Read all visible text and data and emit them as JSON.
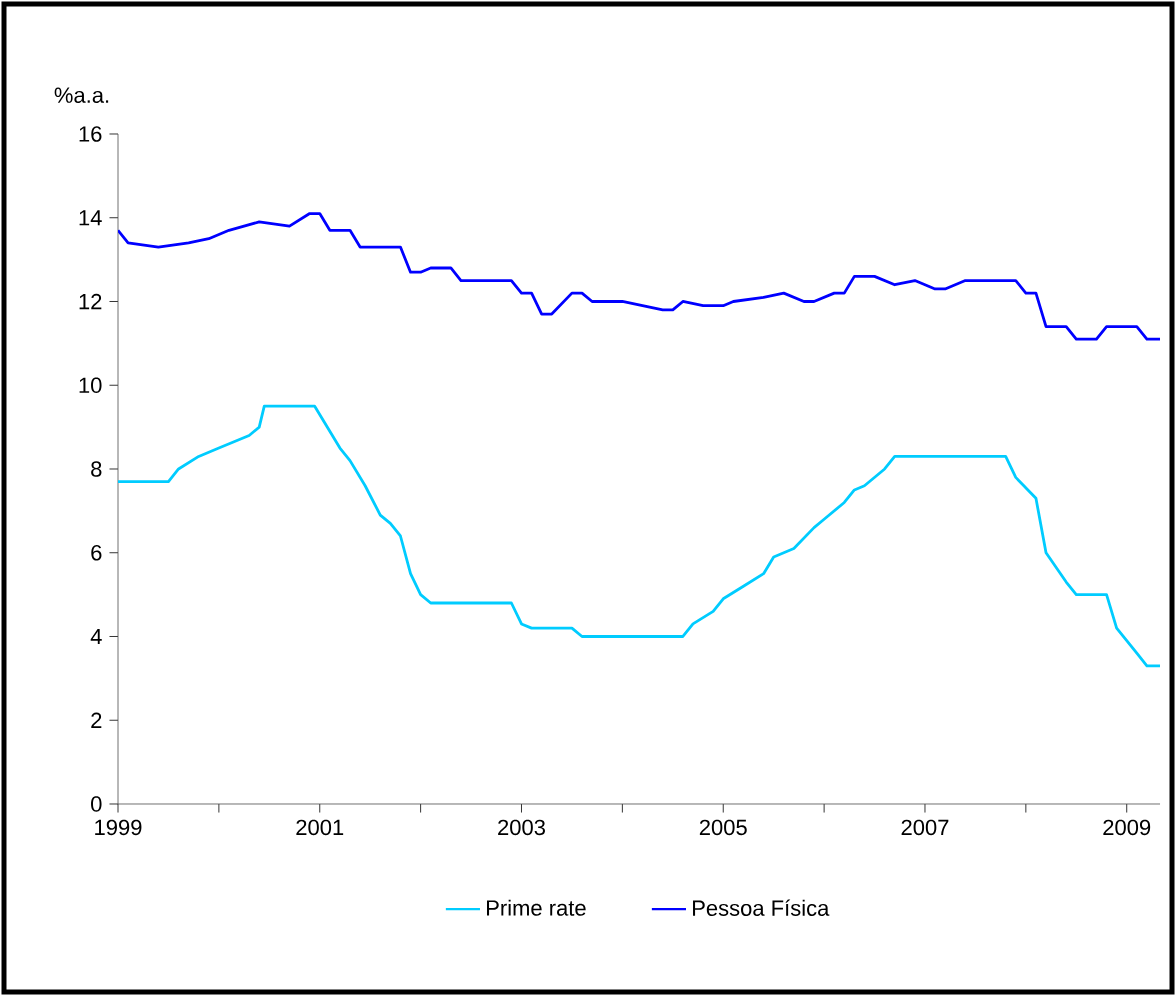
{
  "chart_data": {
    "type": "line",
    "ylabel": "%a.a.",
    "xlim": [
      1999,
      2009.33
    ],
    "ylim": [
      0,
      16
    ],
    "xticks": [
      1999,
      {
        "value": 2000,
        "label": null
      },
      2001,
      {
        "value": 2002,
        "label": null
      },
      2003,
      {
        "value": 2004,
        "label": null
      },
      2005,
      {
        "value": 2006,
        "label": null
      },
      2007,
      {
        "value": 2008,
        "label": null
      },
      2009
    ],
    "yticks": [
      0,
      2,
      4,
      6,
      8,
      10,
      12,
      14,
      16
    ],
    "grid": false,
    "legend": "bottom",
    "marker": "none",
    "line_style": "solid",
    "series": [
      {
        "name": "Prime rate",
        "color": "#00ccff",
        "x": [
          1999.0,
          1999.5,
          1999.6,
          1999.8,
          2000.0,
          2000.3,
          2000.4,
          2000.45,
          2000.95,
          2001.2,
          2001.3,
          2001.45,
          2001.6,
          2001.7,
          2001.8,
          2001.9,
          2002.0,
          2002.1,
          2002.9,
          2003.0,
          2003.1,
          2003.5,
          2003.6,
          2004.6,
          2004.7,
          2004.9,
          2005.0,
          2005.2,
          2005.4,
          2005.5,
          2005.7,
          2005.9,
          2006.0,
          2006.2,
          2006.3,
          2006.4,
          2006.6,
          2006.7,
          2007.8,
          2007.9,
          2008.1,
          2008.2,
          2008.4,
          2008.5,
          2008.8,
          2008.9,
          2009.1,
          2009.2,
          2009.33
        ],
        "values": [
          7.7,
          7.7,
          8.0,
          8.3,
          8.5,
          8.8,
          9.0,
          9.5,
          9.5,
          8.5,
          8.2,
          7.6,
          6.9,
          6.7,
          6.4,
          5.5,
          5.0,
          4.8,
          4.8,
          4.3,
          4.2,
          4.2,
          4.0,
          4.0,
          4.3,
          4.6,
          4.9,
          5.2,
          5.5,
          5.9,
          6.1,
          6.6,
          6.8,
          7.2,
          7.5,
          7.6,
          8.0,
          8.3,
          8.3,
          7.8,
          7.3,
          6.0,
          5.3,
          5.0,
          5.0,
          4.2,
          3.6,
          3.3,
          3.3
        ]
      },
      {
        "name": "Pessoa Física",
        "color": "#0000ff",
        "x": [
          1999.0,
          1999.1,
          1999.4,
          1999.7,
          1999.9,
          2000.1,
          2000.4,
          2000.7,
          2000.9,
          2001.0,
          2001.1,
          2001.3,
          2001.4,
          2001.8,
          2001.9,
          2002.0,
          2002.1,
          2002.3,
          2002.4,
          2002.9,
          2003.0,
          2003.1,
          2003.2,
          2003.3,
          2003.5,
          2003.6,
          2003.7,
          2004.0,
          2004.2,
          2004.4,
          2004.5,
          2004.6,
          2004.8,
          2005.0,
          2005.1,
          2005.4,
          2005.6,
          2005.8,
          2005.9,
          2006.1,
          2006.2,
          2006.3,
          2006.5,
          2006.7,
          2006.9,
          2007.1,
          2007.2,
          2007.4,
          2007.9,
          2008.0,
          2008.1,
          2008.2,
          2008.4,
          2008.5,
          2008.7,
          2008.8,
          2009.1,
          2009.2,
          2009.33
        ],
        "values": [
          13.7,
          13.4,
          13.3,
          13.4,
          13.5,
          13.7,
          13.9,
          13.8,
          14.1,
          14.1,
          13.7,
          13.7,
          13.3,
          13.3,
          12.7,
          12.7,
          12.8,
          12.8,
          12.5,
          12.5,
          12.2,
          12.2,
          11.7,
          11.7,
          12.2,
          12.2,
          12.0,
          12.0,
          11.9,
          11.8,
          11.8,
          12.0,
          11.9,
          11.9,
          12.0,
          12.1,
          12.2,
          12.0,
          12.0,
          12.2,
          12.2,
          12.6,
          12.6,
          12.4,
          12.5,
          12.3,
          12.3,
          12.5,
          12.5,
          12.2,
          12.2,
          11.4,
          11.4,
          11.1,
          11.1,
          11.4,
          11.4,
          11.1,
          11.1
        ]
      }
    ]
  }
}
